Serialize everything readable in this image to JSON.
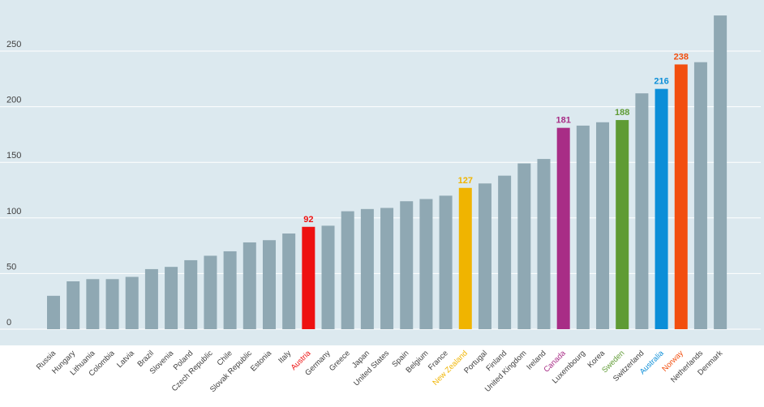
{
  "chart_data": {
    "type": "bar",
    "title": "",
    "xlabel": "",
    "ylabel": "",
    "ylim": [
      0,
      290
    ],
    "yticks": [
      0,
      50,
      100,
      150,
      200,
      250
    ],
    "grid": true,
    "colors": {
      "plot_background": "#dce9ef",
      "default_bar": "#8fa8b3",
      "gridline": "#ffffff",
      "tick_label": "#404040"
    },
    "categories": [
      "Russia",
      "Hungary",
      "Lithuania",
      "Colombia",
      "Latvia",
      "Brazil",
      "Slovenia",
      "Poland",
      "Czech Republic",
      "Chile",
      "Slovak Republic",
      "Estonia",
      "Italy",
      "Austria",
      "Germany",
      "Greece",
      "Japan",
      "United States",
      "Spain",
      "Belgium",
      "France",
      "New Zealand",
      "Portugal",
      "Finland",
      "United Kingdom",
      "Ireland",
      "Canada",
      "Luxembourg",
      "Korea",
      "Sweden",
      "Switzerland",
      "Australia",
      "Norway",
      "Netherlands",
      "Denmark"
    ],
    "values": [
      30,
      43,
      45,
      45,
      47,
      54,
      56,
      62,
      66,
      70,
      78,
      80,
      86,
      92,
      93,
      106,
      108,
      109,
      115,
      117,
      120,
      127,
      131,
      138,
      149,
      153,
      181,
      183,
      186,
      188,
      212,
      216,
      238,
      240,
      282
    ],
    "highlights": [
      {
        "category": "Austria",
        "value_label": "92",
        "color": "#ee1111"
      },
      {
        "category": "New Zealand",
        "value_label": "127",
        "color": "#f0b400"
      },
      {
        "category": "Canada",
        "value_label": "181",
        "color": "#a82d86"
      },
      {
        "category": "Sweden",
        "value_label": "188",
        "color": "#5f9b34"
      },
      {
        "category": "Australia",
        "value_label": "216",
        "color": "#0b8ed8"
      },
      {
        "category": "Norway",
        "value_label": "238",
        "color": "#f24e0e"
      }
    ]
  }
}
